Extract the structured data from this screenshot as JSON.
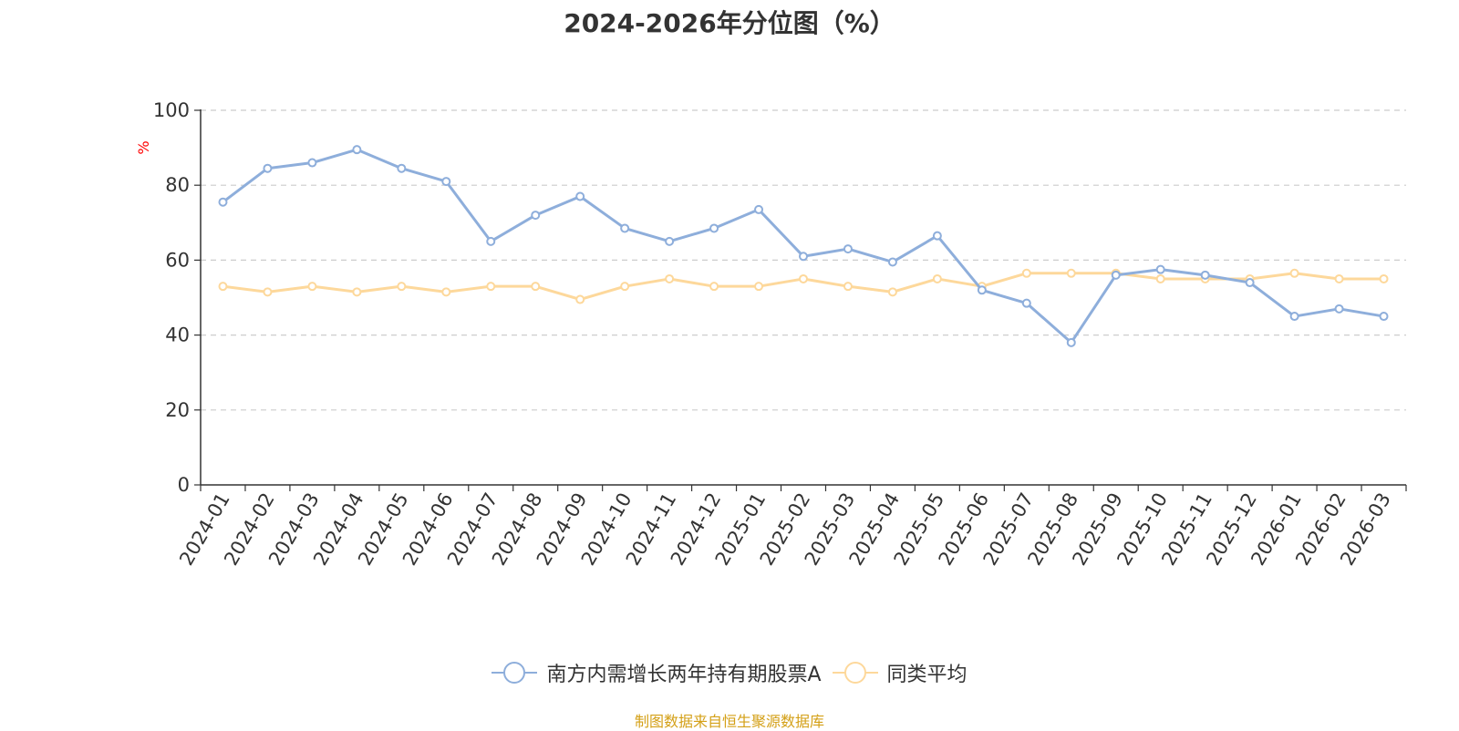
{
  "chart_data": {
    "type": "line",
    "title": "2024-2026年分位图（%）",
    "ylabel": "%",
    "ylim": [
      0,
      100
    ],
    "yticks": [
      0,
      20,
      40,
      60,
      80,
      100
    ],
    "grid": true,
    "legend_position": "bottom",
    "x": [
      "2024-01",
      "2024-02",
      "2024-03",
      "2024-04",
      "2024-05",
      "2024-06",
      "2024-07",
      "2024-08",
      "2024-09",
      "2024-10",
      "2024-11",
      "2024-12",
      "2025-01",
      "2025-02",
      "2025-03",
      "2025-04",
      "2025-05",
      "2025-06",
      "2025-07",
      "2025-08",
      "2025-09",
      "2025-10",
      "2025-11",
      "2025-12",
      "2026-01",
      "2026-02",
      "2026-03"
    ],
    "series": [
      {
        "name": "南方内需增长两年持有期股票A",
        "color": "#8eaedb",
        "values": [
          75.5,
          84.5,
          86,
          89.5,
          84.5,
          81,
          65,
          72,
          77,
          68.5,
          65,
          68.5,
          73.5,
          61,
          63,
          59.5,
          66.5,
          52,
          48.5,
          38,
          56,
          57.5,
          56,
          54,
          45,
          47,
          45
        ]
      },
      {
        "name": "同类平均",
        "color": "#fdd89b",
        "values": [
          53,
          51.5,
          53,
          51.5,
          53,
          51.5,
          53,
          53,
          49.5,
          53,
          55,
          53,
          53,
          55,
          53,
          51.5,
          55,
          53,
          56.5,
          56.5,
          56.5,
          55,
          55,
          55,
          56.5,
          55,
          55
        ]
      }
    ]
  },
  "source_text": "制图数据来自恒生聚源数据库"
}
